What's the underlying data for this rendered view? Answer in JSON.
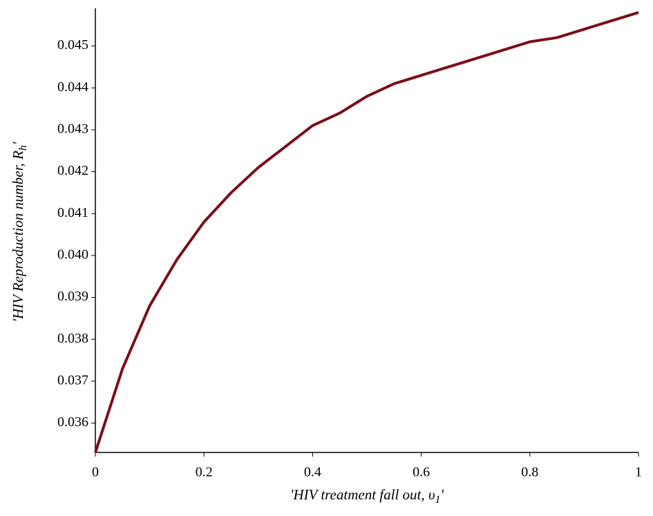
{
  "chart_data": {
    "type": "line",
    "x_label": {
      "text": "'HIV treatment fall out, υ",
      "sub": "1",
      "end": "'"
    },
    "y_label": {
      "text": "'HIV Reproduction number, R",
      "sub": "h",
      "end": "'"
    },
    "x": [
      0,
      0.05,
      0.1,
      0.15,
      0.2,
      0.25,
      0.3,
      0.35,
      0.4,
      0.45,
      0.5,
      0.55,
      0.6,
      0.65,
      0.7,
      0.75,
      0.8,
      0.85,
      0.9,
      0.95,
      1
    ],
    "series": [
      {
        "color": "#7a0d1c",
        "values": [
          0.0353,
          0.0373,
          0.0388,
          0.0399,
          0.0408,
          0.0415,
          0.0421,
          0.0426,
          0.0431,
          0.0434,
          0.0438,
          0.0441,
          0.0443,
          0.0445,
          0.0447,
          0.0449,
          0.0451,
          0.0452,
          0.0454,
          0.0456,
          0.0458
        ]
      }
    ],
    "xlim": [
      0,
      1
    ],
    "ylim": [
      0.0353,
      0.0459
    ],
    "xticks": [
      0,
      0.2,
      0.4,
      0.6,
      0.8,
      1
    ],
    "yticks": [
      0.036,
      0.037,
      0.038,
      0.039,
      {
        "value": 0.04,
        "label": "0.040"
      },
      0.041,
      0.042,
      0.043,
      0.044,
      0.045
    ]
  }
}
